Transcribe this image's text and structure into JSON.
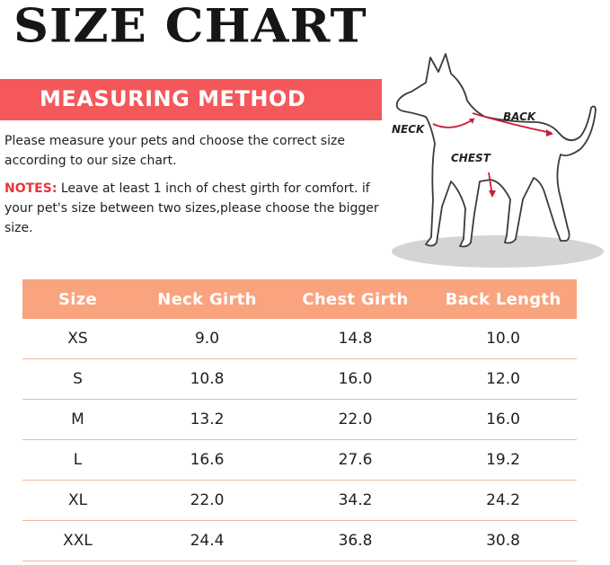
{
  "title": "SIZE CHART",
  "banner": "MEASURING METHOD",
  "instructions": "Please measure your pets and choose the correct size according to our size chart.",
  "notes": {
    "label": "NOTES:",
    "text": " Leave at least 1 inch of chest girth for comfort.  if your pet's size between two sizes,please choose the bigger size."
  },
  "diagram_labels": {
    "neck": "NECK",
    "chest": "CHEST",
    "back": "BACK"
  },
  "colors": {
    "banner": "#f4585b",
    "table_header": "#f9a47f",
    "notes_label": "#e8363a",
    "arrow": "#c81e3c"
  },
  "table": {
    "headers": [
      "Size",
      "Neck Girth",
      "Chest Girth",
      "Back Length"
    ],
    "rows": [
      [
        "XS",
        "9.0",
        "14.8",
        "10.0"
      ],
      [
        "S",
        "10.8",
        "16.0",
        "12.0"
      ],
      [
        "M",
        "13.2",
        "22.0",
        "16.0"
      ],
      [
        "L",
        "16.6",
        "27.6",
        "19.2"
      ],
      [
        "XL",
        "22.0",
        "34.2",
        "24.2"
      ],
      [
        "XXL",
        "24.4",
        "36.8",
        "30.8"
      ]
    ]
  }
}
